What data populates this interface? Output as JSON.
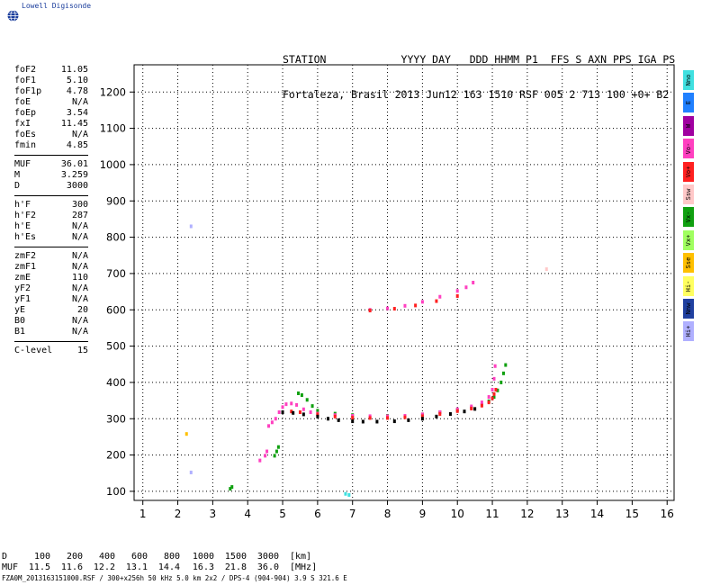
{
  "app": {
    "logo_text": "Lowell Digisonde"
  },
  "header": {
    "line1": "STATION            YYYY DAY   DDD HHMM P1  FFS S AXN PPS IGA PS",
    "line2": "Fortaleza, Brasil 2013 Jun12 163 1510 RSF 005 2 713 100 +0+ B2"
  },
  "params": [
    [
      [
        "foF2",
        "11.05"
      ],
      [
        "foF1",
        "5.10"
      ],
      [
        "foF1p",
        "4.78"
      ],
      [
        "foE",
        "N/A"
      ],
      [
        "foEp",
        "3.54"
      ],
      [
        "fxI",
        "11.45"
      ],
      [
        "foEs",
        "N/A"
      ],
      [
        "fmin",
        "4.85"
      ]
    ],
    [
      [
        "MUF",
        "36.01"
      ],
      [
        "M",
        "3.259"
      ],
      [
        "D",
        "3000"
      ]
    ],
    [
      [
        "h'F",
        "300"
      ],
      [
        "h'F2",
        "287"
      ],
      [
        "h'E",
        "N/A"
      ],
      [
        "h'Es",
        "N/A"
      ]
    ],
    [
      [
        "zmF2",
        "N/A"
      ],
      [
        "zmF1",
        "N/A"
      ],
      [
        "zmE",
        "110"
      ],
      [
        "yF2",
        "N/A"
      ],
      [
        "yF1",
        "N/A"
      ],
      [
        "yE",
        "20"
      ],
      [
        "B0",
        "N/A"
      ],
      [
        "B1",
        "N/A"
      ]
    ],
    [
      [
        "C-level",
        "15"
      ]
    ]
  ],
  "legend": [
    {
      "label": "Nno",
      "color": "#40e0e0"
    },
    {
      "label": "E",
      "color": "#2080ff"
    },
    {
      "label": "W",
      "color": "#a000a0"
    },
    {
      "label": "Vo-",
      "color": "#ff40c0"
    },
    {
      "label": "Vo+",
      "color": "#ff2020"
    },
    {
      "label": "Ssw",
      "color": "#ffc8c8"
    },
    {
      "label": "Vx-",
      "color": "#10a010"
    },
    {
      "label": "Vx+",
      "color": "#a0ff60"
    },
    {
      "label": "Sse",
      "color": "#ffc000"
    },
    {
      "label": "Hi-",
      "color": "#ffff60"
    },
    {
      "label": "Nnw",
      "color": "#2040a0"
    },
    {
      "label": "Hi+",
      "color": "#b0b0ff"
    }
  ],
  "dtable": {
    "row1_label": "D",
    "row1_values": [
      "100",
      "200",
      "400",
      "600",
      "800",
      "1000",
      "1500",
      "3000"
    ],
    "row1_unit": "[km]",
    "row2_label": "MUF",
    "row2_values": [
      "11.5",
      "11.6",
      "12.2",
      "13.1",
      "14.4",
      "16.3",
      "21.8",
      "36.0"
    ],
    "row2_unit": "[MHz]"
  },
  "footer": "FZA0M_2013163151000.RSF / 300+x256h 50 kHz 5.0 km 2x2 / DPS-4 (904-904)  3.9 S 321.6 E",
  "chart_data": {
    "type": "scatter",
    "xlim": [
      0.75,
      16.2
    ],
    "ylim": [
      75,
      1275
    ],
    "xticks": [
      1,
      2,
      3,
      4,
      5,
      6,
      7,
      8,
      9,
      10,
      11,
      12,
      13,
      14,
      15,
      16
    ],
    "yticks": [
      100,
      200,
      300,
      400,
      500,
      600,
      700,
      800,
      900,
      1000,
      1100,
      1200
    ],
    "grid": true,
    "series": [
      {
        "color": "#10a010",
        "points": [
          [
            5.45,
            370
          ],
          [
            5.55,
            365
          ],
          [
            5.7,
            352
          ],
          [
            5.85,
            335
          ],
          [
            6.0,
            322
          ],
          [
            6.5,
            314
          ],
          [
            7.0,
            310
          ],
          [
            8.0,
            308
          ],
          [
            9.0,
            312
          ],
          [
            9.5,
            318
          ],
          [
            10.0,
            324
          ],
          [
            10.4,
            330
          ],
          [
            10.7,
            338
          ],
          [
            10.9,
            348
          ],
          [
            11.05,
            360
          ],
          [
            11.15,
            378
          ],
          [
            11.25,
            400
          ],
          [
            11.32,
            425
          ],
          [
            11.38,
            448
          ],
          [
            4.77,
            198
          ],
          [
            4.83,
            210
          ],
          [
            4.88,
            222
          ],
          [
            3.5,
            107
          ],
          [
            3.55,
            112
          ]
        ]
      },
      {
        "color": "#ff40c0",
        "points": [
          [
            4.6,
            280
          ],
          [
            4.7,
            290
          ],
          [
            4.8,
            300
          ],
          [
            4.9,
            318
          ],
          [
            5.0,
            332
          ],
          [
            5.1,
            340
          ],
          [
            5.25,
            342
          ],
          [
            5.4,
            338
          ],
          [
            5.6,
            326
          ],
          [
            5.8,
            318
          ],
          [
            6.0,
            314
          ],
          [
            6.5,
            310
          ],
          [
            7.0,
            308
          ],
          [
            7.5,
            307
          ],
          [
            8.0,
            307
          ],
          [
            8.5,
            308
          ],
          [
            9.0,
            312
          ],
          [
            9.5,
            318
          ],
          [
            10.0,
            326
          ],
          [
            10.4,
            334
          ],
          [
            10.7,
            345
          ],
          [
            10.9,
            360
          ],
          [
            11.0,
            380
          ],
          [
            11.05,
            410
          ],
          [
            11.08,
            445
          ],
          [
            4.35,
            185
          ],
          [
            4.5,
            198
          ],
          [
            4.55,
            210
          ],
          [
            7.5,
            600
          ],
          [
            8.0,
            604
          ],
          [
            8.5,
            611
          ],
          [
            9.0,
            622
          ],
          [
            9.5,
            636
          ],
          [
            10.0,
            652
          ],
          [
            10.25,
            662
          ],
          [
            10.45,
            675
          ]
        ]
      },
      {
        "color": "#ff2020",
        "points": [
          [
            5.25,
            320
          ],
          [
            5.5,
            318
          ],
          [
            6.0,
            312
          ],
          [
            6.5,
            306
          ],
          [
            7.0,
            303
          ],
          [
            7.5,
            302
          ],
          [
            8.0,
            302
          ],
          [
            8.5,
            304
          ],
          [
            9.0,
            307
          ],
          [
            9.5,
            313
          ],
          [
            10.0,
            321
          ],
          [
            10.4,
            328
          ],
          [
            10.7,
            336
          ],
          [
            10.9,
            345
          ],
          [
            11.0,
            356
          ],
          [
            11.05,
            368
          ],
          [
            11.1,
            380
          ],
          [
            7.5,
            598
          ],
          [
            8.2,
            603
          ],
          [
            8.8,
            612
          ],
          [
            9.4,
            624
          ],
          [
            10.0,
            638
          ]
        ]
      },
      {
        "color": "#000000",
        "points": [
          [
            5.0,
            318
          ],
          [
            5.3,
            316
          ],
          [
            5.6,
            312
          ],
          [
            6.0,
            306
          ],
          [
            6.3,
            300
          ],
          [
            6.6,
            296
          ],
          [
            7.0,
            293
          ],
          [
            7.3,
            292
          ],
          [
            7.7,
            292
          ],
          [
            8.2,
            293
          ],
          [
            8.6,
            296
          ],
          [
            9.0,
            300
          ],
          [
            9.4,
            306
          ],
          [
            9.8,
            313
          ],
          [
            10.2,
            320
          ],
          [
            10.5,
            327
          ]
        ]
      },
      {
        "color": "#40e0e0",
        "points": [
          [
            6.8,
            93
          ],
          [
            6.9,
            90
          ]
        ]
      },
      {
        "color": "#b0b0ff",
        "points": [
          [
            2.38,
            830
          ],
          [
            2.38,
            152
          ]
        ]
      },
      {
        "color": "#ffc000",
        "points": [
          [
            2.25,
            258
          ]
        ]
      },
      {
        "color": "#ffc8c8",
        "points": [
          [
            12.55,
            712
          ]
        ]
      }
    ]
  }
}
